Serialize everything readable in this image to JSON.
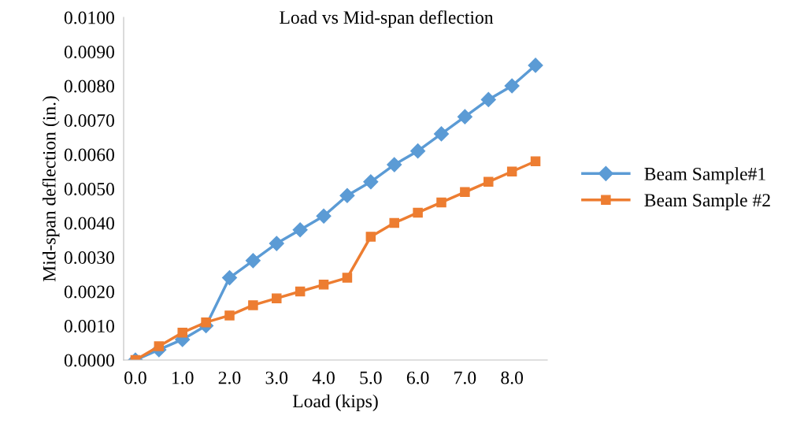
{
  "chart_data": {
    "type": "line",
    "title": "Load vs Mid-span deflection",
    "xlabel": "Load (kips)",
    "ylabel": "Mid-span deflection (in.)",
    "categories": [
      "0.0",
      null,
      "1.0",
      null,
      "2.0",
      null,
      "3.0",
      null,
      "4.0",
      null,
      "5.0",
      null,
      "6.0",
      null,
      "7.0",
      null,
      "8.0",
      null
    ],
    "series": [
      {
        "name": "Beam Sample#1",
        "color": "#5b9bd5",
        "marker": "diamond",
        "values": [
          0,
          0.0003,
          0.0006,
          0.001,
          0.0024,
          0.0029,
          0.0034,
          0.0038,
          0.0042,
          0.0048,
          0.0052,
          0.0057,
          0.0061,
          0.0066,
          0.0071,
          0.0076,
          0.008,
          0.0086
        ]
      },
      {
        "name": "Beam Sample #2",
        "color": "#ed7d31",
        "marker": "square",
        "values": [
          0,
          0.0004,
          0.0008,
          0.0011,
          0.0013,
          0.0016,
          0.0018,
          0.002,
          0.0022,
          0.0024,
          0.0036,
          0.004,
          0.0043,
          0.0046,
          0.0049,
          0.0052,
          0.0055,
          0.0058
        ]
      }
    ],
    "ylim": [
      0,
      0.01
    ],
    "yticks": [
      {
        "value": 0,
        "label": "0.0000"
      },
      {
        "value": 0.001,
        "label": "0.0010"
      },
      {
        "value": 0.002,
        "label": "0.0020"
      },
      {
        "value": 0.003,
        "label": "0.0030"
      },
      {
        "value": 0.004,
        "label": "0.0040"
      },
      {
        "value": 0.005,
        "label": "0.0050"
      },
      {
        "value": 0.006,
        "label": "0.0060"
      },
      {
        "value": 0.007,
        "label": "0.0070"
      },
      {
        "value": 0.008,
        "label": "0.0080"
      },
      {
        "value": 0.009,
        "label": "0.0090"
      },
      {
        "value": 0.01,
        "label": "0.0100"
      }
    ],
    "grid": false,
    "legend": "right",
    "line_style": "solid"
  }
}
